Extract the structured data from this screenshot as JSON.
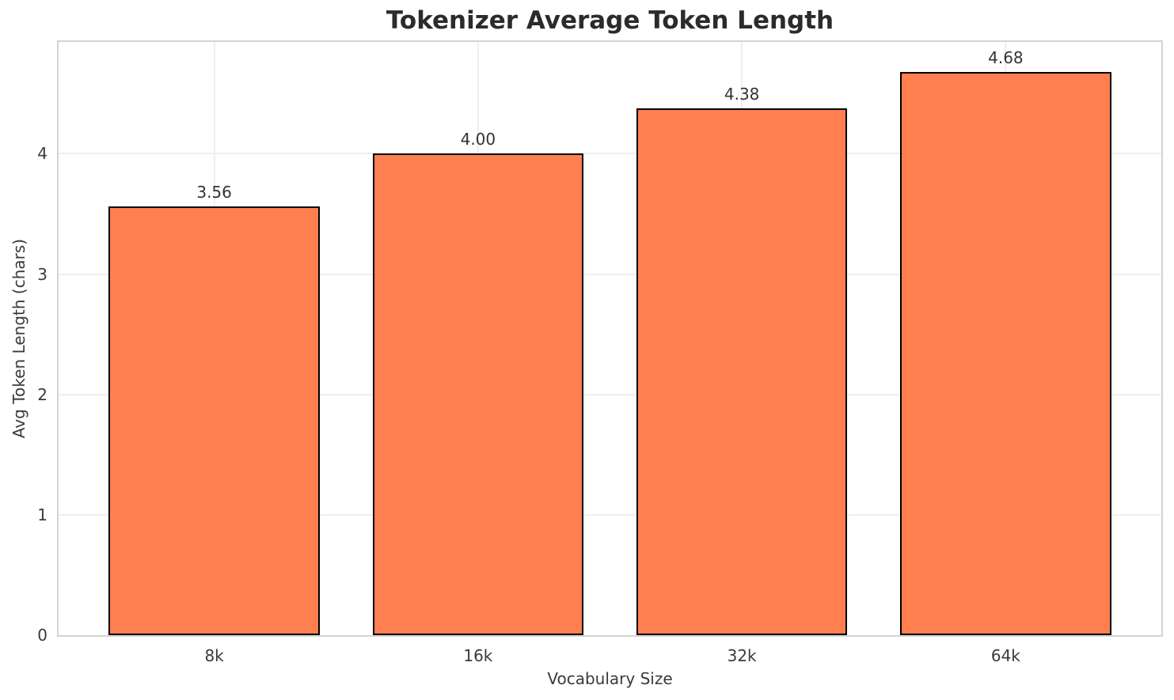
{
  "chart_data": {
    "type": "bar",
    "title": "Tokenizer Average Token Length",
    "xlabel": "Vocabulary Size",
    "ylabel": "Avg Token Length (chars)",
    "categories": [
      "8k",
      "16k",
      "32k",
      "64k"
    ],
    "values": [
      3.56,
      4.0,
      4.38,
      4.68
    ],
    "value_labels": [
      "3.56",
      "4.00",
      "4.38",
      "4.68"
    ],
    "yticks": [
      0,
      1,
      2,
      3,
      4
    ],
    "ytick_labels": [
      "0",
      "1",
      "2",
      "3",
      "4"
    ],
    "ylim": [
      0,
      4.93
    ],
    "grid": true,
    "legend": "none",
    "bar_rel_width": 0.8,
    "colors": {
      "bar_fill": "#FF7F50",
      "bar_edge": "#000000",
      "grid": "#efefef",
      "spine": "#d4d4d4",
      "background": "#ffffff",
      "title_text": "#2b2b2b",
      "tick_text": "#3a3a3a",
      "value_label_text": "#333333"
    }
  }
}
